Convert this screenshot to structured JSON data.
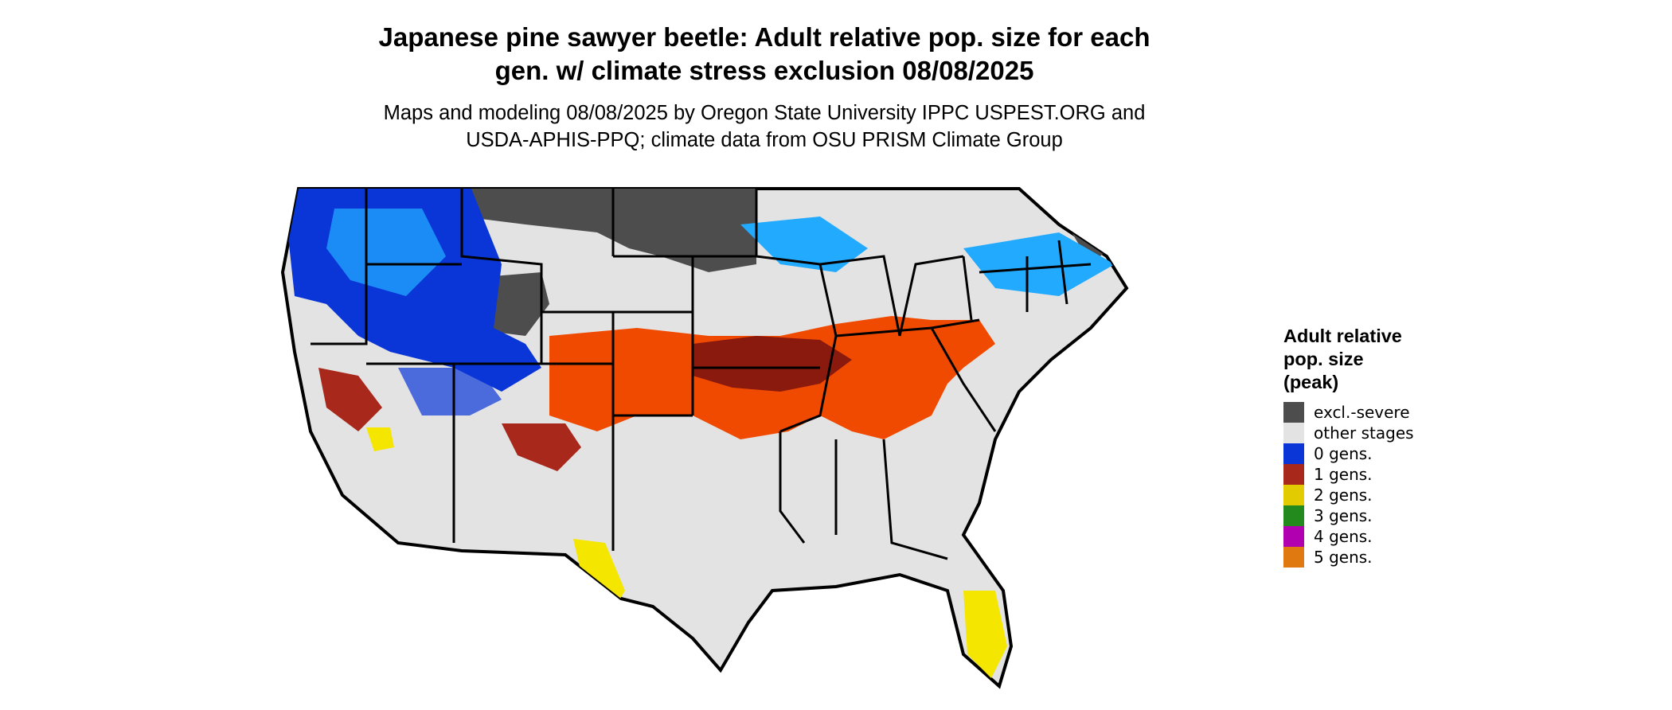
{
  "title_line1": "Japanese pine sawyer beetle: Adult relative pop. size for each",
  "title_line2": "gen. w/ climate stress exclusion 08/08/2025",
  "subtitle_line1": "Maps and modeling 08/08/2025 by Oregon State University IPPC USPEST.ORG and",
  "subtitle_line2": "USDA-APHIS-PPQ; climate data from OSU PRISM Climate Group",
  "legend": {
    "title_line1": "Adult relative",
    "title_line2": "pop. size",
    "title_line3": "(peak)",
    "items": [
      {
        "label": "excl.-severe",
        "color": "#4d4d4d"
      },
      {
        "label": "other stages",
        "color": "#e3e3e3"
      },
      {
        "label": "0 gens.",
        "color": "#0a36d8"
      },
      {
        "label": "1 gens.",
        "color": "#a8281c"
      },
      {
        "label": "2 gens.",
        "color": "#e2cb00"
      },
      {
        "label": "3 gens.",
        "color": "#238b1e"
      },
      {
        "label": "4 gens.",
        "color": "#b000b0"
      },
      {
        "label": "5 gens.",
        "color": "#e07a10"
      }
    ]
  },
  "map_colors": {
    "dark_red": "#8a1a0e",
    "orange_red": "#f04a00",
    "light_blue": "#22aaff",
    "yellow": "#f5e600"
  }
}
